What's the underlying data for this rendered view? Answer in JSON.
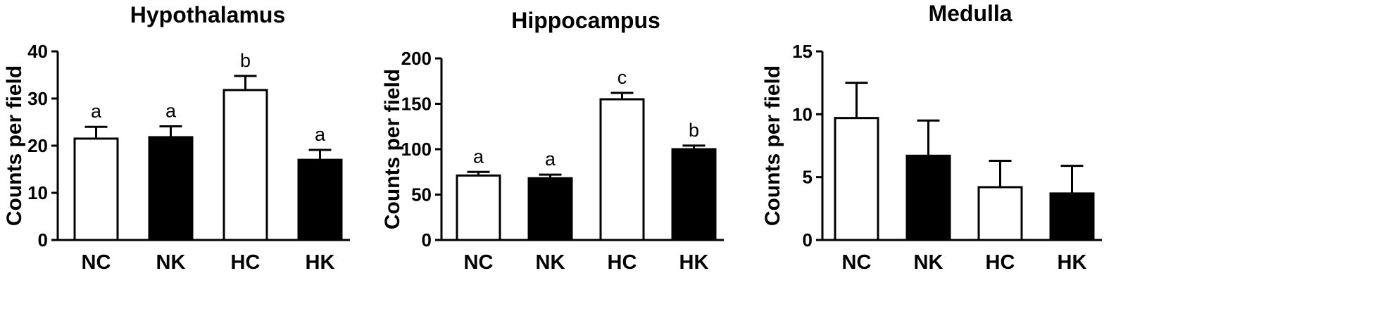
{
  "chart_data": [
    {
      "type": "bar",
      "title": "Hypothalamus",
      "ylabel": "Counts per field",
      "categories": [
        "NC",
        "NK",
        "HC",
        "HK"
      ],
      "values": [
        21.5,
        21.8,
        31.8,
        17.0
      ],
      "errors": [
        2.5,
        2.3,
        3.0,
        2.1
      ],
      "bar_colors": [
        "#ffffff",
        "#000000",
        "#ffffff",
        "#000000"
      ],
      "significance": [
        "a",
        "a",
        "b",
        "a"
      ],
      "ylim": [
        0,
        40
      ],
      "yticks": [
        0,
        10,
        20,
        30,
        40
      ]
    },
    {
      "type": "bar",
      "title": "Hippocampus",
      "ylabel": "Counts per field",
      "categories": [
        "NC",
        "NK",
        "HC",
        "HK"
      ],
      "values": [
        71,
        68,
        155,
        100
      ],
      "errors": [
        4,
        4,
        7,
        4
      ],
      "bar_colors": [
        "#ffffff",
        "#000000",
        "#ffffff",
        "#000000"
      ],
      "significance": [
        "a",
        "a",
        "c",
        "b"
      ],
      "ylim": [
        0,
        200
      ],
      "yticks": [
        0,
        50,
        100,
        150,
        200
      ]
    },
    {
      "type": "bar",
      "title": "Medulla",
      "ylabel": "Counts per field",
      "categories": [
        "NC",
        "NK",
        "HC",
        "HK"
      ],
      "values": [
        9.7,
        6.7,
        4.2,
        3.7
      ],
      "errors": [
        2.8,
        2.8,
        2.1,
        2.2
      ],
      "bar_colors": [
        "#ffffff",
        "#000000",
        "#ffffff",
        "#000000"
      ],
      "significance": [
        "",
        "",
        "",
        ""
      ],
      "ylim": [
        0,
        15
      ],
      "yticks": [
        0,
        5,
        10,
        15
      ]
    }
  ]
}
